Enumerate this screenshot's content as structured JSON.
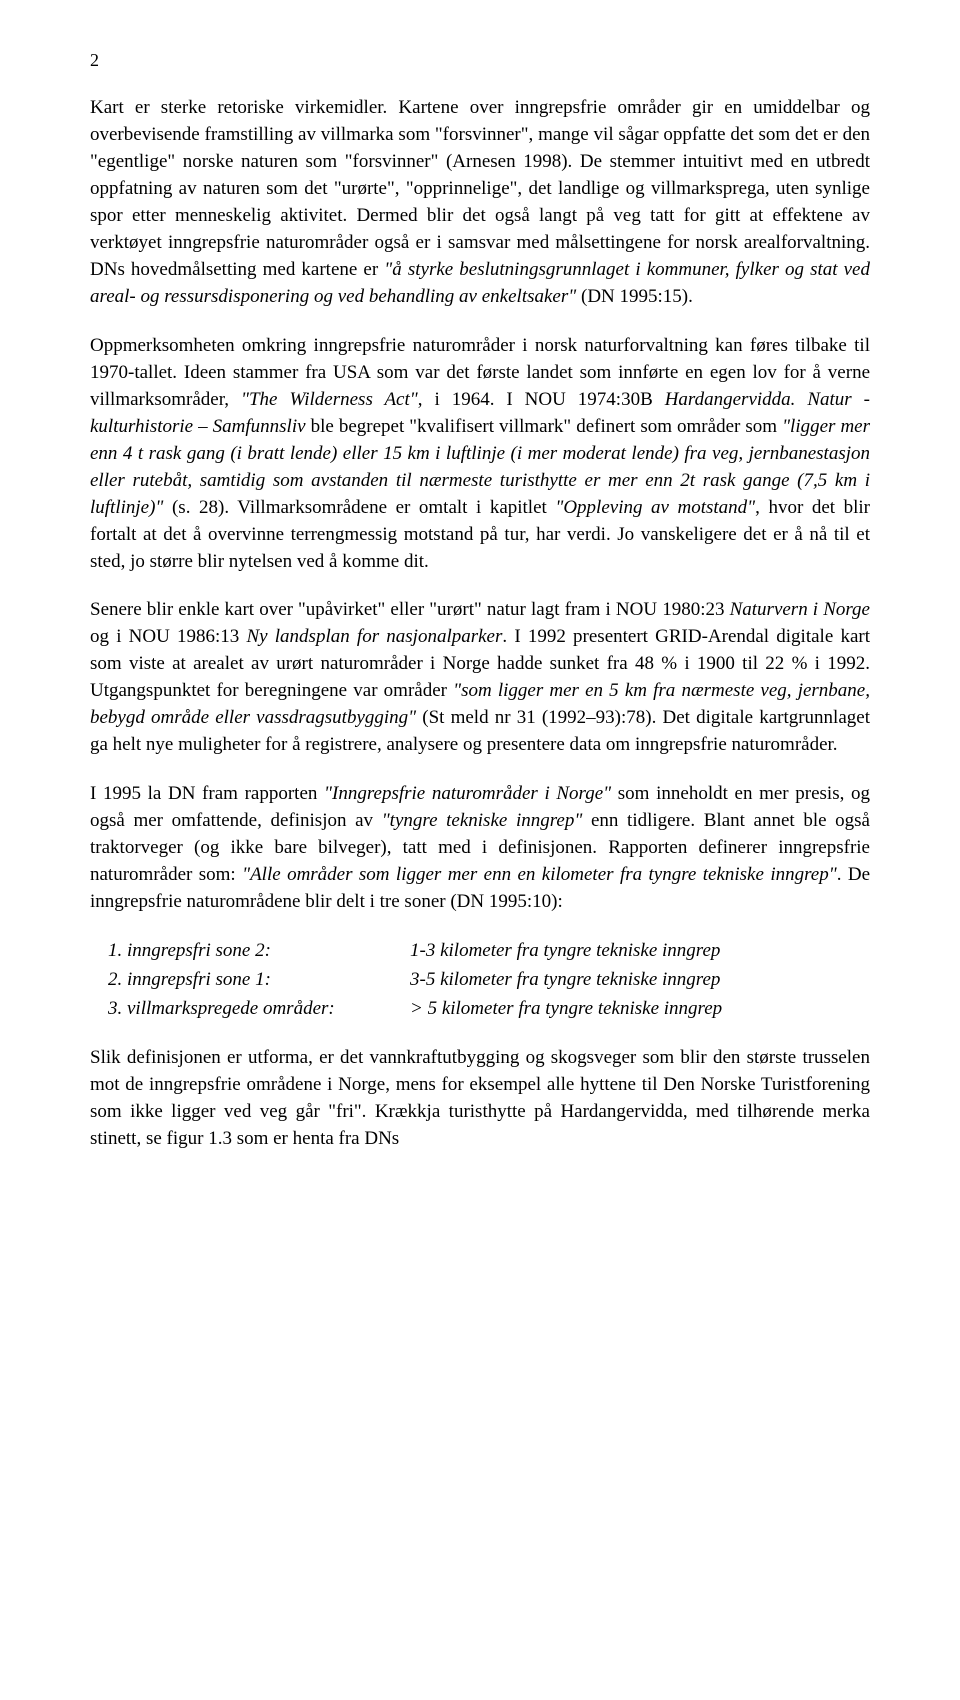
{
  "pageNumber": "2",
  "p1_a": "Kart er sterke retoriske virkemidler. Kartene over inngrepsfrie områder gir en umiddelbar og overbevisende framstilling av villmarka som \"forsvinner\", mange vil sågar oppfatte det som det er den \"egentlige\" norske naturen som \"forsvinner\" (Arnesen 1998). De stemmer intuitivt med en utbredt oppfatning av naturen som det \"urørte\", \"opprinnelige\", det landlige og villmarksprega, uten synlige spor etter menneskelig aktivitet. Dermed blir det også langt på veg tatt for gitt at effektene av verktøyet inngrepsfrie naturområder også er i samsvar med målsettingene for norsk arealforvaltning. DNs hovedmålsetting med kartene er ",
  "p1_b": "\"å styrke beslutningsgrunnlaget i kommuner, fylker og stat ved areal- og ressursdisponering og ved behandling av enkeltsaker\"",
  "p1_c": " (DN 1995:15).",
  "p2_a": "Oppmerksomheten omkring inngrepsfrie naturområder i norsk naturforvaltning kan føres tilbake til 1970-tallet. Ideen stammer fra USA som var det første landet som innførte en egen lov for å verne villmarksområder, ",
  "p2_b": "\"The Wilderness Act\"",
  "p2_c": ", i 1964. I NOU 1974:30B ",
  "p2_d": "Hardangervidda. Natur - kulturhistorie – Samfunnsliv",
  "p2_e": " ble begrepet \"kvalifisert villmark\" definert som områder som ",
  "p2_f": "\"ligger mer enn 4 t rask gang (i bratt lende) eller 15 km i luftlinje (i mer moderat lende) fra veg, jernbanestasjon eller rutebåt, samtidig som avstanden til nærmeste turisthytte er mer enn 2t rask gange (7,5 km i luftlinje)\"",
  "p2_g": " (s. 28). Villmarksområdene er omtalt i kapitlet ",
  "p2_h": "\"Oppleving av motstand\"",
  "p2_i": ", hvor det blir fortalt at det å overvinne terrengmessig motstand på tur, har verdi. Jo vanskeligere det er å nå til et sted, jo større blir nytelsen ved å komme dit.",
  "p3_a": "Senere blir enkle kart over \"upåvirket\" eller \"urørt\" natur lagt fram i NOU 1980:23 ",
  "p3_b": "Naturvern i Norge",
  "p3_c": " og i NOU 1986:13 ",
  "p3_d": "Ny landsplan for nasjonalparker",
  "p3_e": ". I 1992 presentert GRID-Arendal digitale kart som viste at arealet av urørt naturområder i Norge hadde sunket fra 48 % i 1900 til 22 % i 1992. Utgangspunktet for beregningene var områder ",
  "p3_f": "\"som ligger mer en 5 km fra nærmeste veg, jernbane, bebygd område eller vassdragsutbygging\"",
  "p3_g": " (St meld nr 31 (1992–93):78). Det digitale kartgrunnlaget ga helt nye muligheter for å registrere, analysere og presentere data om inngrepsfrie naturområder.",
  "p4_a": "I 1995 la DN fram rapporten ",
  "p4_b": "\"Inngrepsfrie naturområder i Norge\"",
  "p4_c": " som inneholdt en mer presis, og også mer omfattende, definisjon av ",
  "p4_d": "\"tyngre tekniske inngrep\"",
  "p4_e": " enn tidligere. Blant annet ble også traktorveger (og ikke bare bilveger), tatt med i definisjonen. Rapporten definerer inngrepsfrie naturområder som: ",
  "p4_f": "\"Alle områder som ligger mer enn en kilometer fra tyngre tekniske inngrep\"",
  "p4_g": ". De inngrepsfrie naturområdene blir delt i tre soner (DN 1995:10):",
  "zones": [
    {
      "label": "1. inngrepsfri sone 2:",
      "desc": "1-3 kilometer fra tyngre tekniske inngrep"
    },
    {
      "label": "2. inngrepsfri sone 1:",
      "desc": "3-5 kilometer fra tyngre tekniske inngrep"
    },
    {
      "label": "3. villmarkspregede områder:",
      "desc": "> 5 kilometer fra tyngre tekniske inngrep"
    }
  ],
  "p5": "Slik definisjonen er utforma, er det vannkraftutbygging og skogsveger som blir den største trusselen mot de inngrepsfrie områdene i Norge, mens for eksempel alle hyttene til Den Norske Turistforening som ikke ligger ved veg går \"fri\". Krækkja turisthytte på Hardangervidda, med tilhørende merka stinett, se figur 1.3 som er henta fra DNs"
}
